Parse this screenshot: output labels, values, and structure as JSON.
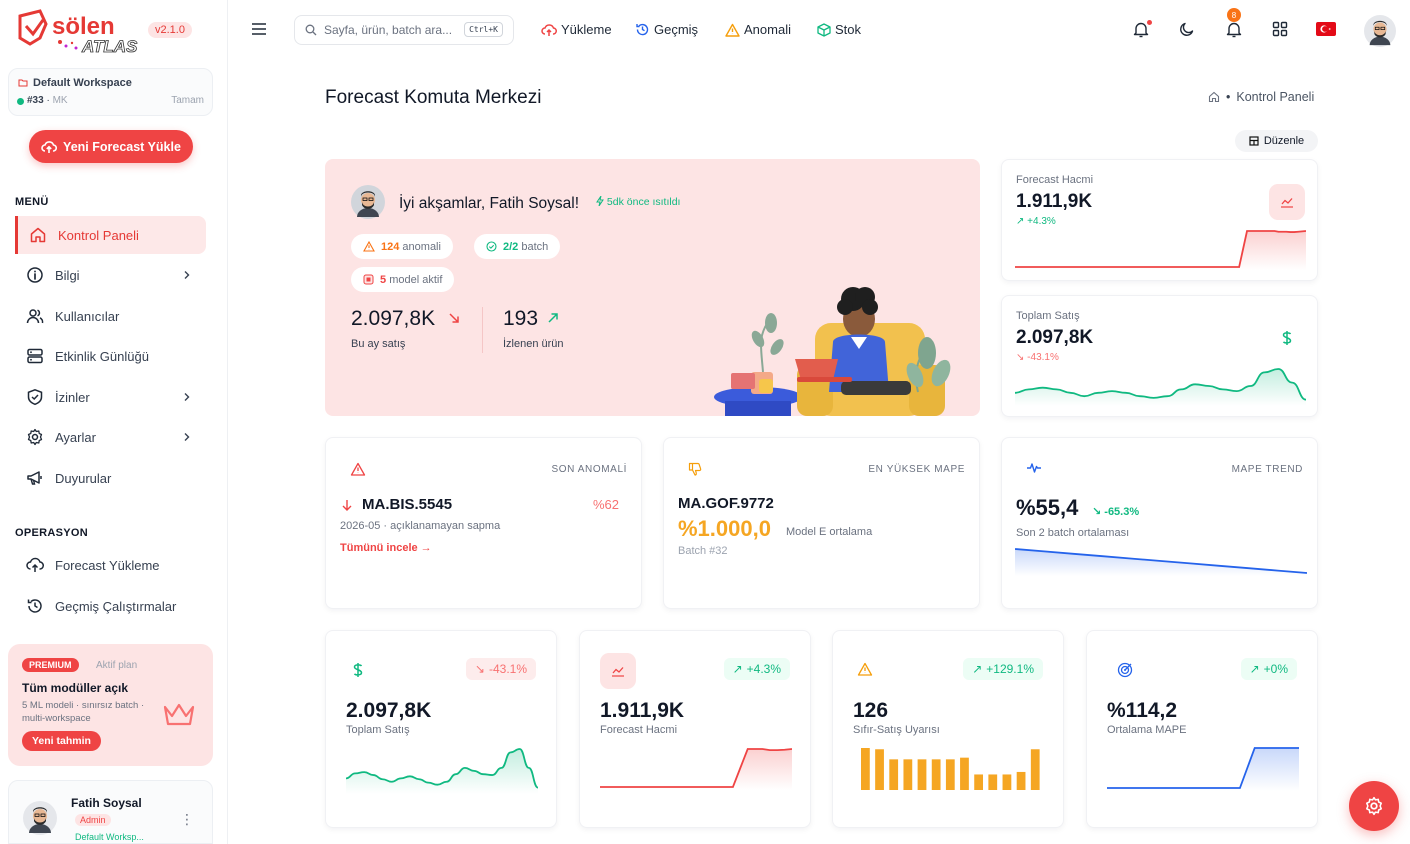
{
  "brand": {
    "logo_text": "sölen ATLAS",
    "version": "v2.1.0"
  },
  "workspace": {
    "name": "Default Workspace",
    "id": "#33",
    "code": "MK",
    "status": "Tamam"
  },
  "sidebar": {
    "upload_button": "Yeni Forecast Yükle",
    "menu_title": "MENÜ",
    "items": [
      {
        "label": "Kontrol Paneli",
        "icon": "home-icon",
        "active": true
      },
      {
        "label": "Bilgi",
        "icon": "info-icon",
        "chevron": true
      },
      {
        "label": "Kullanıcılar",
        "icon": "users-icon"
      },
      {
        "label": "Etkinlik Günlüğü",
        "icon": "server-icon"
      },
      {
        "label": "İzinler",
        "icon": "shield-icon",
        "chevron": true
      },
      {
        "label": "Ayarlar",
        "icon": "gear-icon",
        "chevron": true
      },
      {
        "label": "Duyurular",
        "icon": "megaphone-icon"
      }
    ],
    "ops_title": "OPERASYON",
    "ops_items": [
      {
        "label": "Forecast Yükleme",
        "icon": "cloud-upload-icon"
      },
      {
        "label": "Geçmiş Çalıştırmalar",
        "icon": "history-icon"
      }
    ]
  },
  "premium": {
    "badge": "PREMIUM",
    "plan": "Aktif plan",
    "title": "Tüm modüller açık",
    "desc": "5 ML modeli · sınırsız batch · multi-workspace",
    "button": "Yeni tahmin"
  },
  "user": {
    "name": "Fatih Soysal",
    "role": "Admin",
    "workspace": "Default Worksp..."
  },
  "topbar": {
    "search_placeholder": "Sayfa, ürün, batch ara...",
    "shortcut": "Ctrl+K",
    "links": [
      "Yükleme",
      "Geçmiş",
      "Anomali",
      "Stok"
    ],
    "notification_count": "8"
  },
  "page": {
    "title": "Forecast Komuta Merkezi",
    "breadcrumb": "Kontrol Paneli",
    "edit_button": "Düzenle"
  },
  "hero": {
    "greeting": "İyi akşamlar, Fatih Soysal!",
    "refreshed": "5dk önce ısıtıldı",
    "pills": [
      {
        "value": "124",
        "label": "anomali",
        "color": "#f97316"
      },
      {
        "value": "2/2",
        "label": "batch",
        "color": "#10b981"
      },
      {
        "value": "5",
        "label": "model aktif",
        "color": "#ef4444"
      }
    ],
    "stats": [
      {
        "value": "2.097,8K",
        "label": "Bu ay satış",
        "trend": "down"
      },
      {
        "value": "193",
        "label": "İzlenen ürün",
        "trend": "up"
      }
    ]
  },
  "mini_cards": [
    {
      "label": "Forecast Hacmi",
      "value": "1.911,9K",
      "change": "+4.3%",
      "color": "#ef4444",
      "series": [
        0,
        0,
        0,
        0,
        0,
        0,
        0,
        0,
        0,
        0,
        0,
        0,
        0,
        0,
        0,
        0,
        0,
        0,
        0,
        0,
        0,
        0,
        0,
        0,
        0,
        0,
        0,
        0,
        0,
        0,
        0,
        0,
        0,
        0,
        0,
        0,
        0,
        0,
        0,
        0,
        0,
        0,
        0,
        0,
        0,
        0,
        0,
        0,
        0,
        0,
        0,
        0,
        0,
        0,
        0,
        0,
        0,
        0,
        0.5,
        1,
        1,
        1,
        1,
        1,
        1,
        1,
        1,
        0.98,
        0.98,
        0.98,
        0.97,
        0.97,
        0.98,
        0.99,
        1
      ]
    },
    {
      "label": "Toplam Satış",
      "value": "2.097,8K",
      "change": "-43.1%",
      "color": "#10b981",
      "series": [
        0.3,
        0.4,
        0.45,
        0.4,
        0.3,
        0.2,
        0.3,
        0.35,
        0.3,
        0.2,
        0.15,
        0.2,
        0.4,
        0.55,
        0.5,
        0.4,
        0.35,
        0.5,
        0.9,
        1,
        0.6,
        0.1
      ]
    }
  ],
  "info_cards": {
    "anomaly": {
      "header": "SON ANOMALİ",
      "code": "MA.BIS.5545",
      "pct": "%62",
      "sub": "2026-05 · açıklanamayan sapma",
      "link": "Tümünü incele →"
    },
    "mape": {
      "header": "EN YÜKSEK MAPE",
      "code": "MA.GOF.9772",
      "value": "%1.000,0",
      "model": "Model E ortalama",
      "batch": "Batch #32"
    },
    "trend": {
      "header": "MAPE TREND",
      "value": "%55,4",
      "change": "-65.3%",
      "sub": "Son 2 batch ortalaması"
    }
  },
  "bottom_cards": [
    {
      "label": "Toplam Satış",
      "value": "2.097,8K",
      "change": "-43.1%",
      "color": "#10b981",
      "chart": "line",
      "series": [
        0.3,
        0.42,
        0.45,
        0.38,
        0.28,
        0.22,
        0.3,
        0.35,
        0.28,
        0.2,
        0.15,
        0.22,
        0.4,
        0.55,
        0.48,
        0.4,
        0.38,
        0.55,
        0.92,
        1,
        0.55,
        0.08
      ]
    },
    {
      "label": "Forecast Hacmi",
      "value": "1.911,9K",
      "change": "+4.3%",
      "color": "#ef4444",
      "chart": "line",
      "series": [
        0,
        0,
        0,
        0,
        0,
        0,
        0,
        0,
        0,
        0,
        0,
        0,
        0,
        0,
        0,
        0,
        0,
        0,
        0,
        0.5,
        1,
        1,
        1,
        0.97,
        0.97,
        0.98,
        1
      ]
    },
    {
      "label": "Sıfır-Satış Uyarısı",
      "value": "126",
      "change": "+129.1%",
      "color": "#f5a623",
      "chart": "bar",
      "series": [
        1,
        0.97,
        0.73,
        0.73,
        0.73,
        0.73,
        0.73,
        0.77,
        0.37,
        0.37,
        0.37,
        0.43,
        0.97
      ]
    },
    {
      "label": "Ortalama MAPE",
      "value": "%114,2",
      "change": "+0%",
      "color": "#2563eb",
      "chart": "line",
      "series": [
        0,
        0,
        0,
        0,
        0,
        0,
        0,
        0,
        0,
        0,
        0,
        0,
        0,
        0,
        0,
        0,
        0,
        0,
        0,
        0.5,
        1,
        1,
        1,
        1,
        1,
        1,
        1
      ]
    }
  ],
  "mape_trend_series": [
    1,
    0.9,
    0.8,
    0.7,
    0.6,
    0.5,
    0.4,
    0.3,
    0.2,
    0.1,
    0
  ]
}
